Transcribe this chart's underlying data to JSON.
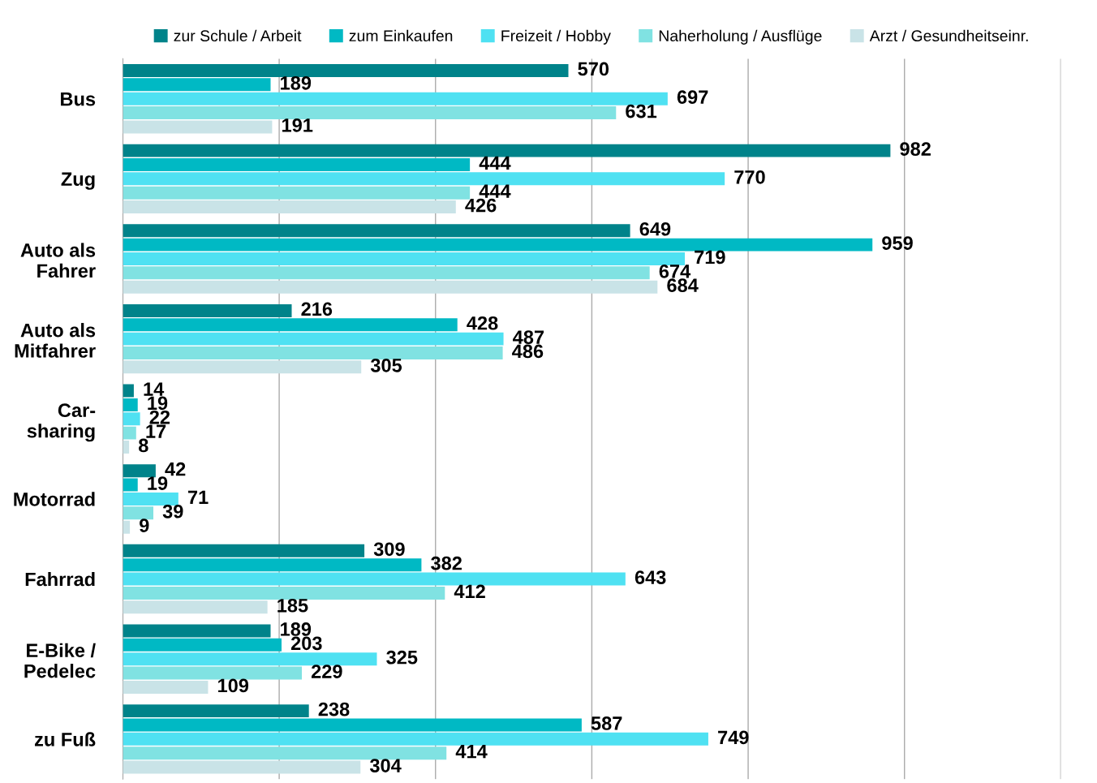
{
  "chart_data": {
    "type": "bar",
    "orientation": "horizontal",
    "categories": [
      "Bus",
      "Zug",
      "Auto als\nFahrer",
      "Auto als\nMitfahrer",
      "Car-\nsharing",
      "Motorrad",
      "Fahrrad",
      "E-Bike /\nPedelec",
      "zu Fuß"
    ],
    "series": [
      {
        "name": "zur Schule / Arbeit",
        "color": "#00838a",
        "values": [
          570,
          982,
          649,
          216,
          14,
          42,
          309,
          189,
          238
        ]
      },
      {
        "name": "zum Einkaufen",
        "color": "#00b9c4",
        "values": [
          189,
          444,
          959,
          428,
          19,
          19,
          382,
          203,
          587
        ]
      },
      {
        "name": "Freizeit / Hobby",
        "color": "#4fe1f2",
        "values": [
          697,
          770,
          719,
          487,
          22,
          71,
          643,
          325,
          749
        ]
      },
      {
        "name": "Naherholung / Ausflüge",
        "color": "#80e2e2",
        "values": [
          631,
          444,
          674,
          486,
          17,
          39,
          412,
          229,
          414
        ]
      },
      {
        "name": "Arzt / Gesundheitseinr.",
        "color": "#c9e3e7",
        "values": [
          191,
          426,
          684,
          305,
          8,
          9,
          185,
          109,
          304
        ]
      }
    ],
    "xlim": [
      0,
      1200
    ],
    "xticks": [
      {
        "value": 0,
        "label": null
      },
      {
        "value": 200,
        "label": null
      },
      {
        "value": 400,
        "label": null
      },
      {
        "value": 600,
        "label": null
      },
      {
        "value": 800,
        "label": null
      },
      {
        "value": 1000,
        "label": null
      },
      {
        "value": 1200,
        "label": null
      }
    ],
    "grid": "x",
    "tick_labels": "y",
    "data_labels": true,
    "legend": "top"
  }
}
